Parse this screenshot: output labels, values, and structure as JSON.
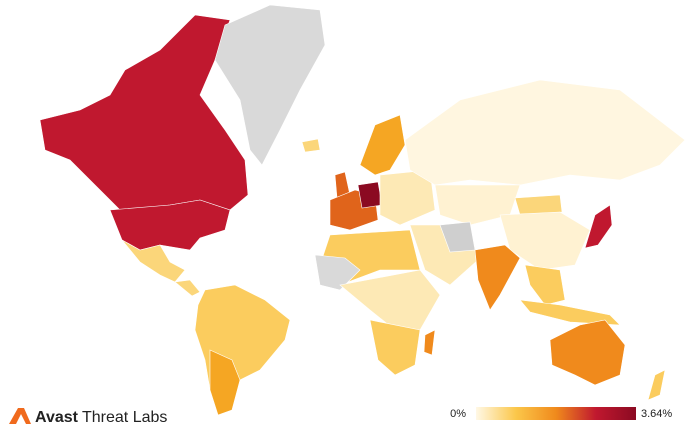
{
  "logo": {
    "brand": "Avast",
    "product": "Threat Labs"
  },
  "legend": {
    "min": {
      "value": 0,
      "label": "0%"
    },
    "max": {
      "value": 3.64,
      "label": "3.64%"
    },
    "colors": [
      "#fff8e6",
      "#fbc74a",
      "#f08a1c",
      "#c0182f",
      "#8b0a22"
    ]
  }
}
